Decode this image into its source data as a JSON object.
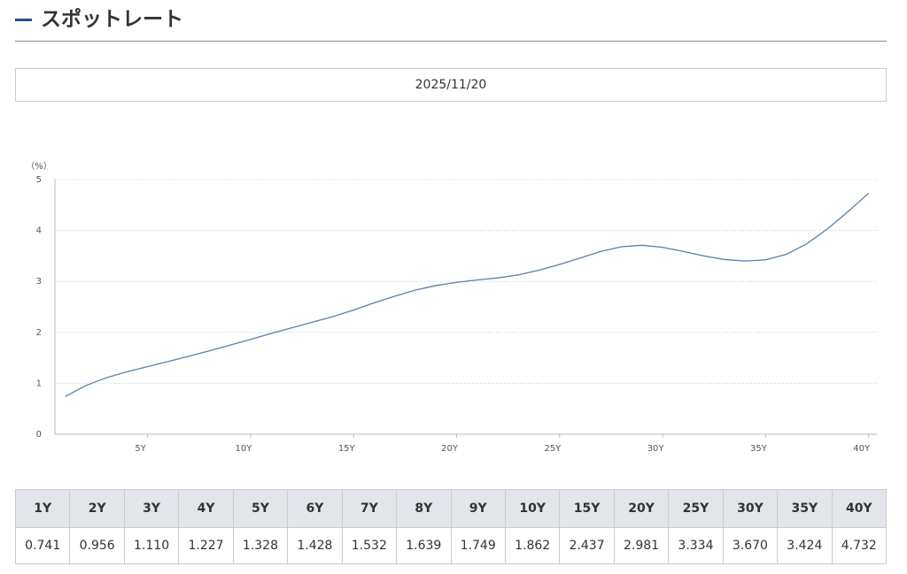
{
  "header": {
    "title": "スポットレート"
  },
  "date": "2025/11/20",
  "chart_data": {
    "type": "line",
    "y_label": "（%）",
    "color": "#5a7fab",
    "x": [
      1,
      2,
      3,
      4,
      5,
      6,
      7,
      8,
      9,
      10,
      11,
      12,
      13,
      14,
      15,
      16,
      17,
      18,
      19,
      20,
      21,
      22,
      23,
      24,
      25,
      26,
      27,
      28,
      29,
      30,
      31,
      32,
      33,
      34,
      35,
      36,
      37,
      38,
      39,
      40
    ],
    "values": [
      0.741,
      0.956,
      1.11,
      1.227,
      1.328,
      1.428,
      1.532,
      1.639,
      1.749,
      1.862,
      1.98,
      2.09,
      2.2,
      2.31,
      2.437,
      2.58,
      2.71,
      2.83,
      2.92,
      2.981,
      3.03,
      3.07,
      3.13,
      3.22,
      3.334,
      3.46,
      3.59,
      3.68,
      3.71,
      3.67,
      3.59,
      3.5,
      3.43,
      3.4,
      3.424,
      3.53,
      3.74,
      4.03,
      4.37,
      4.732
    ],
    "xlim": [
      0.5,
      40.4
    ],
    "xticks": [
      {
        "value": 5,
        "label": "5Y"
      },
      {
        "value": 10,
        "label": "10Y"
      },
      {
        "value": 15,
        "label": "15Y"
      },
      {
        "value": 20,
        "label": "20Y"
      },
      {
        "value": 25,
        "label": "25Y"
      },
      {
        "value": 30,
        "label": "30Y"
      },
      {
        "value": 35,
        "label": "35Y"
      },
      {
        "value": 40,
        "label": "40Y"
      }
    ],
    "ylim": [
      0,
      5
    ],
    "yticks": [
      0,
      1,
      2,
      3,
      4,
      5
    ],
    "grid": true
  },
  "table": {
    "headers": [
      "1Y",
      "2Y",
      "3Y",
      "4Y",
      "5Y",
      "6Y",
      "7Y",
      "8Y",
      "9Y",
      "10Y",
      "15Y",
      "20Y",
      "25Y",
      "30Y",
      "35Y",
      "40Y"
    ],
    "rows": [
      [
        "0.741",
        "0.956",
        "1.110",
        "1.227",
        "1.328",
        "1.428",
        "1.532",
        "1.639",
        "1.749",
        "1.862",
        "2.437",
        "2.981",
        "3.334",
        "3.670",
        "3.424",
        "4.732"
      ]
    ]
  }
}
